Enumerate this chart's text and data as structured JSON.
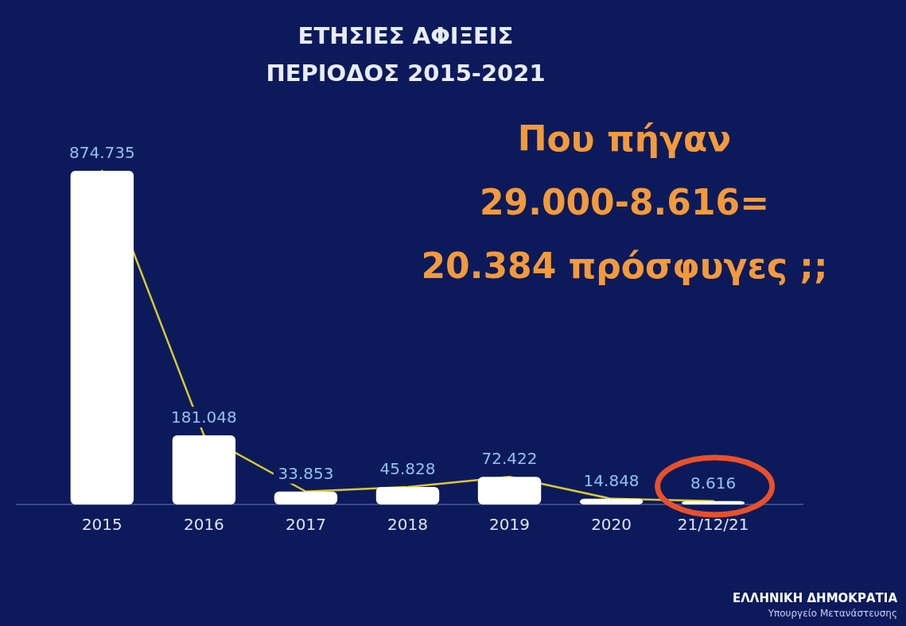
{
  "chart_data": {
    "type": "bar",
    "title": "ΕΤΗΣΙΕΣ ΑΦΙΞΕΙΣ",
    "subtitle": "ΠΕΡΙΟΔΟΣ 2015-2021",
    "categories": [
      "2015",
      "2016",
      "2017",
      "2018",
      "2019",
      "2020",
      "21/12/21"
    ],
    "series": [
      {
        "color": "#ffffff",
        "values": [
          874735,
          181048,
          33853,
          45828,
          72422,
          14848,
          8616
        ],
        "value_labels": [
          "874.735",
          "181.048",
          "33.853",
          "45.828",
          "72.422",
          "14.848",
          "8.616"
        ]
      },
      {
        "type": "line",
        "color": "#d9c830",
        "values": [
          874735,
          181048,
          33853,
          45828,
          72422,
          14848,
          8616
        ]
      }
    ],
    "annotations": [
      "Που πήγαν",
      "29.000-8.616=",
      "20.384 πρόσφυγες ;;",
      "ΕΛΛΗΝΙΚΗ ΔΗΜΟΚΡΑΤΙΑ",
      "Υπουργείο Μετανάστευσης"
    ]
  }
}
